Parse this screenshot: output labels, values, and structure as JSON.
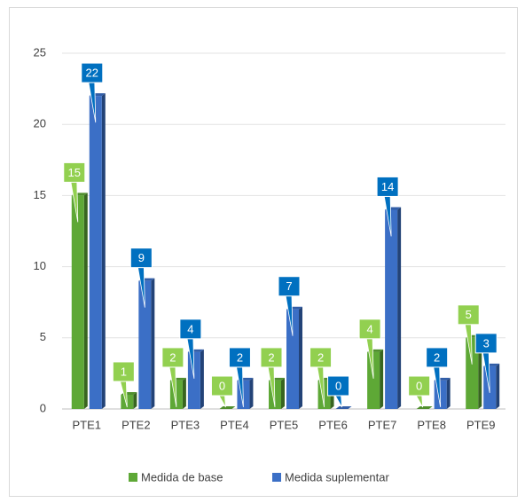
{
  "chart_data": {
    "type": "bar",
    "categories": [
      "PTE1",
      "PTE2",
      "PTE3",
      "PTE4",
      "PTE5",
      "PTE6",
      "PTE7",
      "PTE8",
      "PTE9"
    ],
    "series": [
      {
        "name": "Medida de base",
        "color": "#5ea836",
        "values": [
          15,
          1,
          2,
          0,
          2,
          2,
          4,
          0,
          5
        ]
      },
      {
        "name": "Medida suplementar",
        "color": "#3b6fc6",
        "values": [
          22,
          9,
          4,
          2,
          7,
          0,
          14,
          2,
          3
        ]
      }
    ],
    "ylim": [
      0,
      25
    ],
    "yticks": [
      0,
      5,
      10,
      15,
      20,
      25
    ],
    "grid": true,
    "legend": "bottom"
  }
}
